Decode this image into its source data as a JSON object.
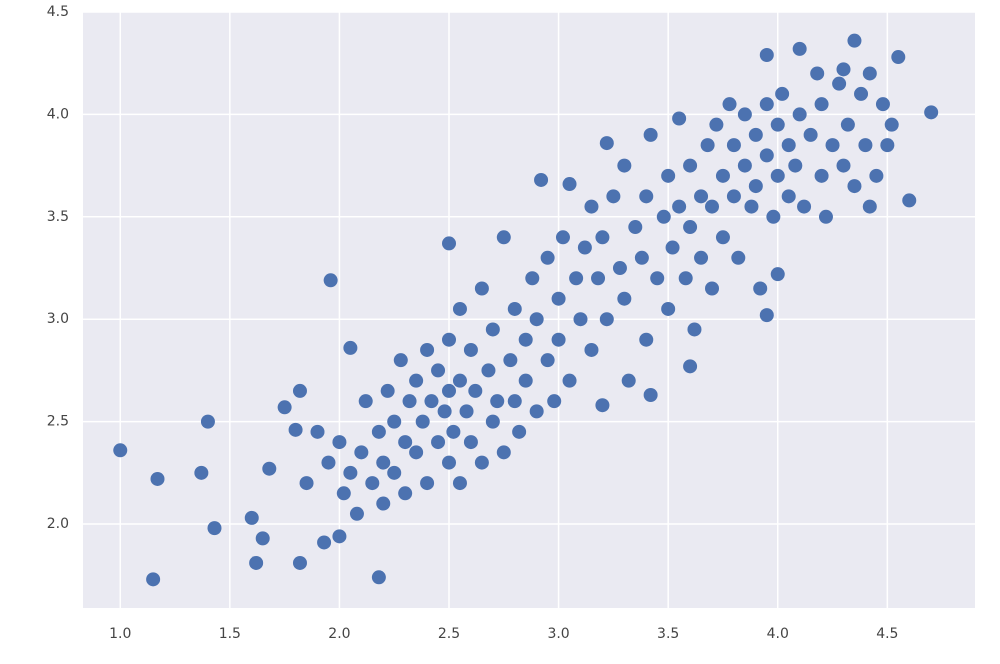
{
  "chart_data": {
    "type": "scatter",
    "color": "#4c72b0",
    "grid": true,
    "xlim": [
      0.83,
      4.9
    ],
    "ylim": [
      1.59,
      4.5
    ],
    "xticks": [
      {
        "value": 1,
        "label": "1.0"
      },
      1.5,
      {
        "value": 2,
        "label": "2.0"
      },
      2.5,
      {
        "value": 3,
        "label": "3.0"
      },
      3.5,
      {
        "value": 4,
        "label": "4.0"
      },
      4.5
    ],
    "yticks": [
      {
        "value": 2,
        "label": "2.0"
      },
      2.5,
      {
        "value": 3,
        "label": "3.0"
      },
      3.5,
      {
        "value": 4,
        "label": "4.0"
      },
      4.5
    ],
    "x": [
      1.0,
      1.15,
      1.17,
      1.37,
      1.4,
      1.43,
      1.6,
      1.62,
      1.65,
      1.68,
      1.75,
      1.8,
      1.82,
      1.82,
      1.93,
      1.96,
      2.0,
      2.05,
      2.18,
      2.5,
      3.42,
      3.6,
      3.95,
      4.0,
      4.7,
      4.6,
      4.35,
      4.1,
      3.95,
      4.55,
      1.85,
      1.9,
      1.95,
      2.0,
      2.02,
      2.05,
      2.08,
      2.1,
      2.12,
      2.15,
      2.18,
      2.2,
      2.2,
      2.22,
      2.25,
      2.25,
      2.28,
      2.3,
      2.3,
      2.32,
      2.35,
      2.35,
      2.38,
      2.4,
      2.4,
      2.42,
      2.45,
      2.45,
      2.48,
      2.5,
      2.5,
      2.5,
      2.52,
      2.55,
      2.55,
      2.55,
      2.58,
      2.6,
      2.6,
      2.62,
      2.65,
      2.65,
      2.68,
      2.7,
      2.7,
      2.72,
      2.75,
      2.75,
      2.78,
      2.8,
      2.8,
      2.82,
      2.85,
      2.85,
      2.88,
      2.9,
      2.9,
      2.92,
      2.95,
      2.95,
      2.98,
      3.0,
      3.0,
      3.02,
      3.05,
      3.05,
      3.08,
      3.1,
      3.12,
      3.15,
      3.15,
      3.18,
      3.2,
      3.2,
      3.22,
      3.22,
      3.25,
      3.28,
      3.3,
      3.3,
      3.32,
      3.35,
      3.38,
      3.4,
      3.4,
      3.42,
      3.45,
      3.48,
      3.5,
      3.5,
      3.52,
      3.55,
      3.55,
      3.58,
      3.6,
      3.6,
      3.62,
      3.65,
      3.65,
      3.68,
      3.7,
      3.7,
      3.72,
      3.75,
      3.75,
      3.78,
      3.8,
      3.8,
      3.82,
      3.85,
      3.85,
      3.88,
      3.9,
      3.9,
      3.92,
      3.95,
      3.95,
      3.98,
      4.0,
      4.0,
      4.02,
      4.05,
      4.05,
      4.08,
      4.1,
      4.12,
      4.15,
      4.18,
      4.2,
      4.2,
      4.22,
      4.25,
      4.28,
      4.3,
      4.3,
      4.32,
      4.35,
      4.38,
      4.4,
      4.42,
      4.42,
      4.45,
      4.48,
      4.5,
      4.52
    ],
    "y": [
      2.36,
      1.73,
      2.22,
      2.25,
      2.5,
      1.98,
      2.03,
      1.81,
      1.93,
      2.27,
      2.57,
      2.46,
      2.65,
      1.81,
      1.91,
      3.19,
      1.94,
      2.86,
      1.74,
      3.37,
      2.63,
      2.77,
      3.02,
      3.22,
      4.01,
      3.58,
      4.36,
      4.32,
      4.29,
      4.28,
      2.2,
      2.45,
      2.3,
      2.4,
      2.15,
      2.25,
      2.05,
      2.35,
      2.6,
      2.2,
      2.45,
      2.3,
      2.1,
      2.65,
      2.5,
      2.25,
      2.8,
      2.4,
      2.15,
      2.6,
      2.7,
      2.35,
      2.5,
      2.85,
      2.2,
      2.6,
      2.4,
      2.75,
      2.55,
      2.3,
      2.65,
      2.9,
      2.45,
      2.2,
      2.7,
      3.05,
      2.55,
      2.4,
      2.85,
      2.65,
      2.3,
      3.15,
      2.75,
      2.5,
      2.95,
      2.6,
      3.4,
      2.35,
      2.8,
      2.6,
      3.05,
      2.45,
      2.9,
      2.7,
      3.2,
      2.55,
      3.0,
      3.68,
      2.8,
      3.3,
      2.6,
      3.1,
      2.9,
      3.4,
      3.66,
      2.7,
      3.2,
      3.0,
      3.35,
      2.85,
      3.55,
      3.2,
      2.58,
      3.4,
      3.0,
      3.86,
      3.6,
      3.25,
      3.1,
      3.75,
      2.7,
      3.45,
      3.3,
      2.9,
      3.6,
      3.9,
      3.2,
      3.5,
      3.7,
      3.05,
      3.35,
      3.98,
      3.55,
      3.2,
      3.45,
      3.75,
      2.95,
      3.6,
      3.3,
      3.85,
      3.55,
      3.15,
      3.95,
      3.7,
      3.4,
      4.05,
      3.6,
      3.85,
      3.3,
      3.75,
      4.0,
      3.55,
      3.9,
      3.65,
      3.15,
      3.8,
      4.05,
      3.5,
      3.7,
      3.95,
      4.1,
      3.6,
      3.85,
      3.75,
      4.0,
      3.55,
      3.9,
      4.2,
      3.7,
      4.05,
      3.5,
      3.85,
      4.15,
      3.75,
      4.22,
      3.95,
      3.65,
      4.1,
      3.85,
      3.55,
      4.2,
      3.7,
      4.05,
      3.85,
      3.95
    ]
  }
}
